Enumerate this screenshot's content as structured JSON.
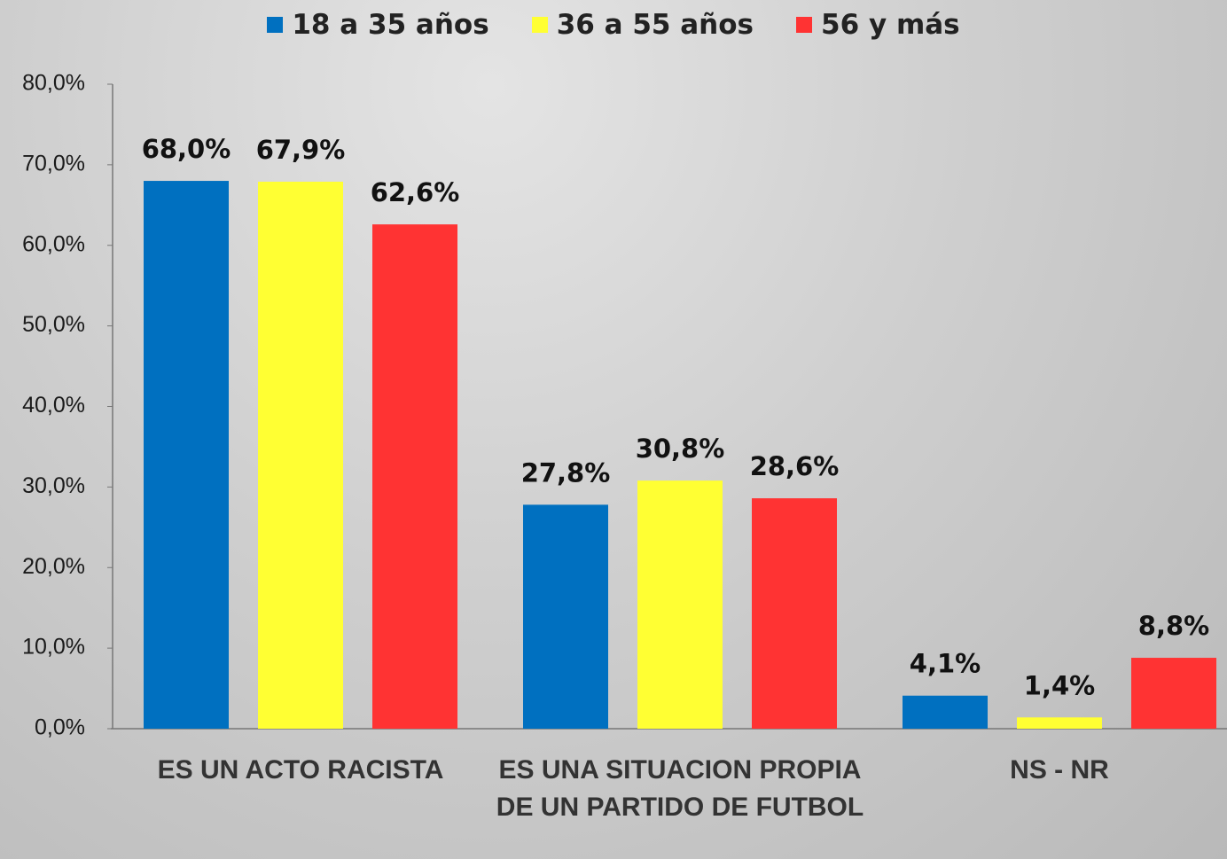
{
  "chart_data": {
    "type": "bar",
    "categories": [
      "ES UN ACTO RACISTA",
      "ES UNA SITUACION PROPIA DE UN PARTIDO DE FUTBOL",
      "NS - NR"
    ],
    "series": [
      {
        "name": "18 a 35 años",
        "color": "#0070c0",
        "values": [
          68.0,
          27.8,
          4.1
        ],
        "value_labels": [
          "68,0%",
          "27,8%",
          "4,1%"
        ]
      },
      {
        "name": "36 a 55 años",
        "color": "#ffff33",
        "values": [
          67.9,
          30.8,
          1.4
        ],
        "value_labels": [
          "67,9%",
          "30,8%",
          "1,4%"
        ]
      },
      {
        "name": "56 y más",
        "color": "#ff3333",
        "values": [
          62.6,
          28.6,
          8.8
        ],
        "value_labels": [
          "62,6%",
          "28,6%",
          "8,8%"
        ]
      }
    ],
    "ylim": [
      0,
      80
    ],
    "yticks": [
      {
        "value": 0,
        "label": "0,0%"
      },
      {
        "value": 10,
        "label": "10,0%"
      },
      {
        "value": 20,
        "label": "20,0%"
      },
      {
        "value": 30,
        "label": "30,0%"
      },
      {
        "value": 40,
        "label": "40,0%"
      },
      {
        "value": 50,
        "label": "50,0%"
      },
      {
        "value": 60,
        "label": "60,0%"
      },
      {
        "value": 70,
        "label": "70,0%"
      },
      {
        "value": 80,
        "label": "80,0%"
      }
    ],
    "legend": "top"
  }
}
